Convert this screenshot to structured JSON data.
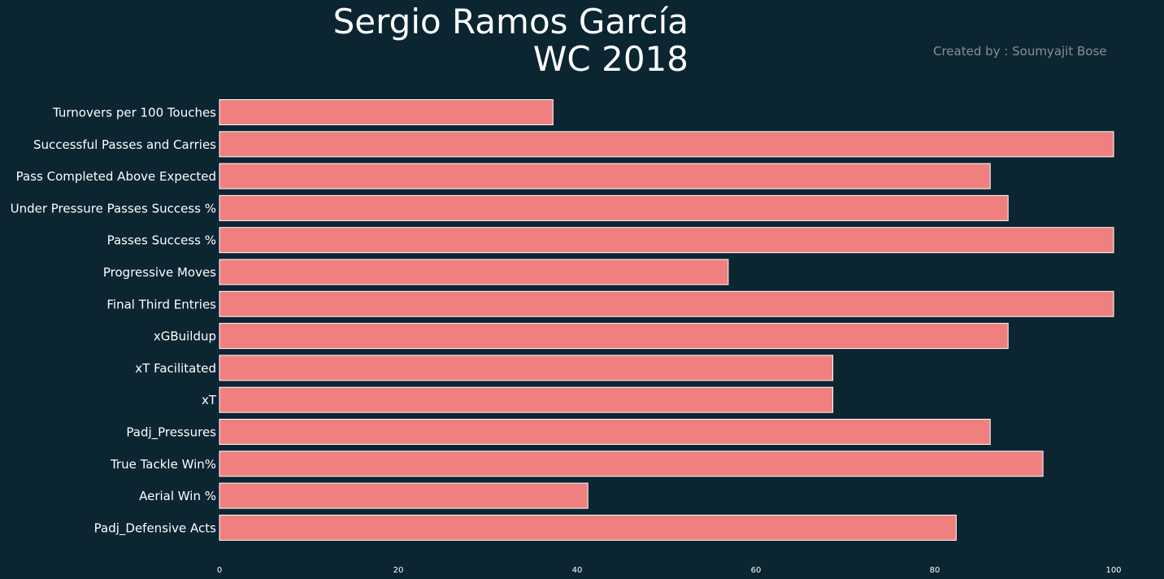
{
  "chart_data": {
    "type": "bar",
    "orientation": "horizontal",
    "title_line1": "Sergio Ramos García",
    "title_line2": "WC 2018",
    "credit": "Created by : Soumyajit Bose",
    "xlim": [
      0,
      100
    ],
    "xticks": [
      "0",
      "20",
      "40",
      "60",
      "80",
      "100"
    ],
    "grid": false,
    "bar_color": "#f08080",
    "background_color": "#0b2531",
    "categories": [
      "Turnovers per 100 Touches",
      "Successful Passes and Carries",
      "Pass Completed Above Expected",
      "Under Pressure Passes Success %",
      "Passes Success %",
      "Progressive Moves",
      "Final Third Entries",
      "xGBuildup",
      "xT Facilitated",
      "xT",
      "Padj_Pressures",
      "True Tackle Win%",
      "Aerial Win %",
      "Padj_Defensive Acts"
    ],
    "values": [
      37.3,
      100,
      86.2,
      88.2,
      100,
      56.9,
      100,
      88.2,
      68.6,
      68.6,
      86.2,
      92.1,
      41.2,
      82.4
    ]
  }
}
